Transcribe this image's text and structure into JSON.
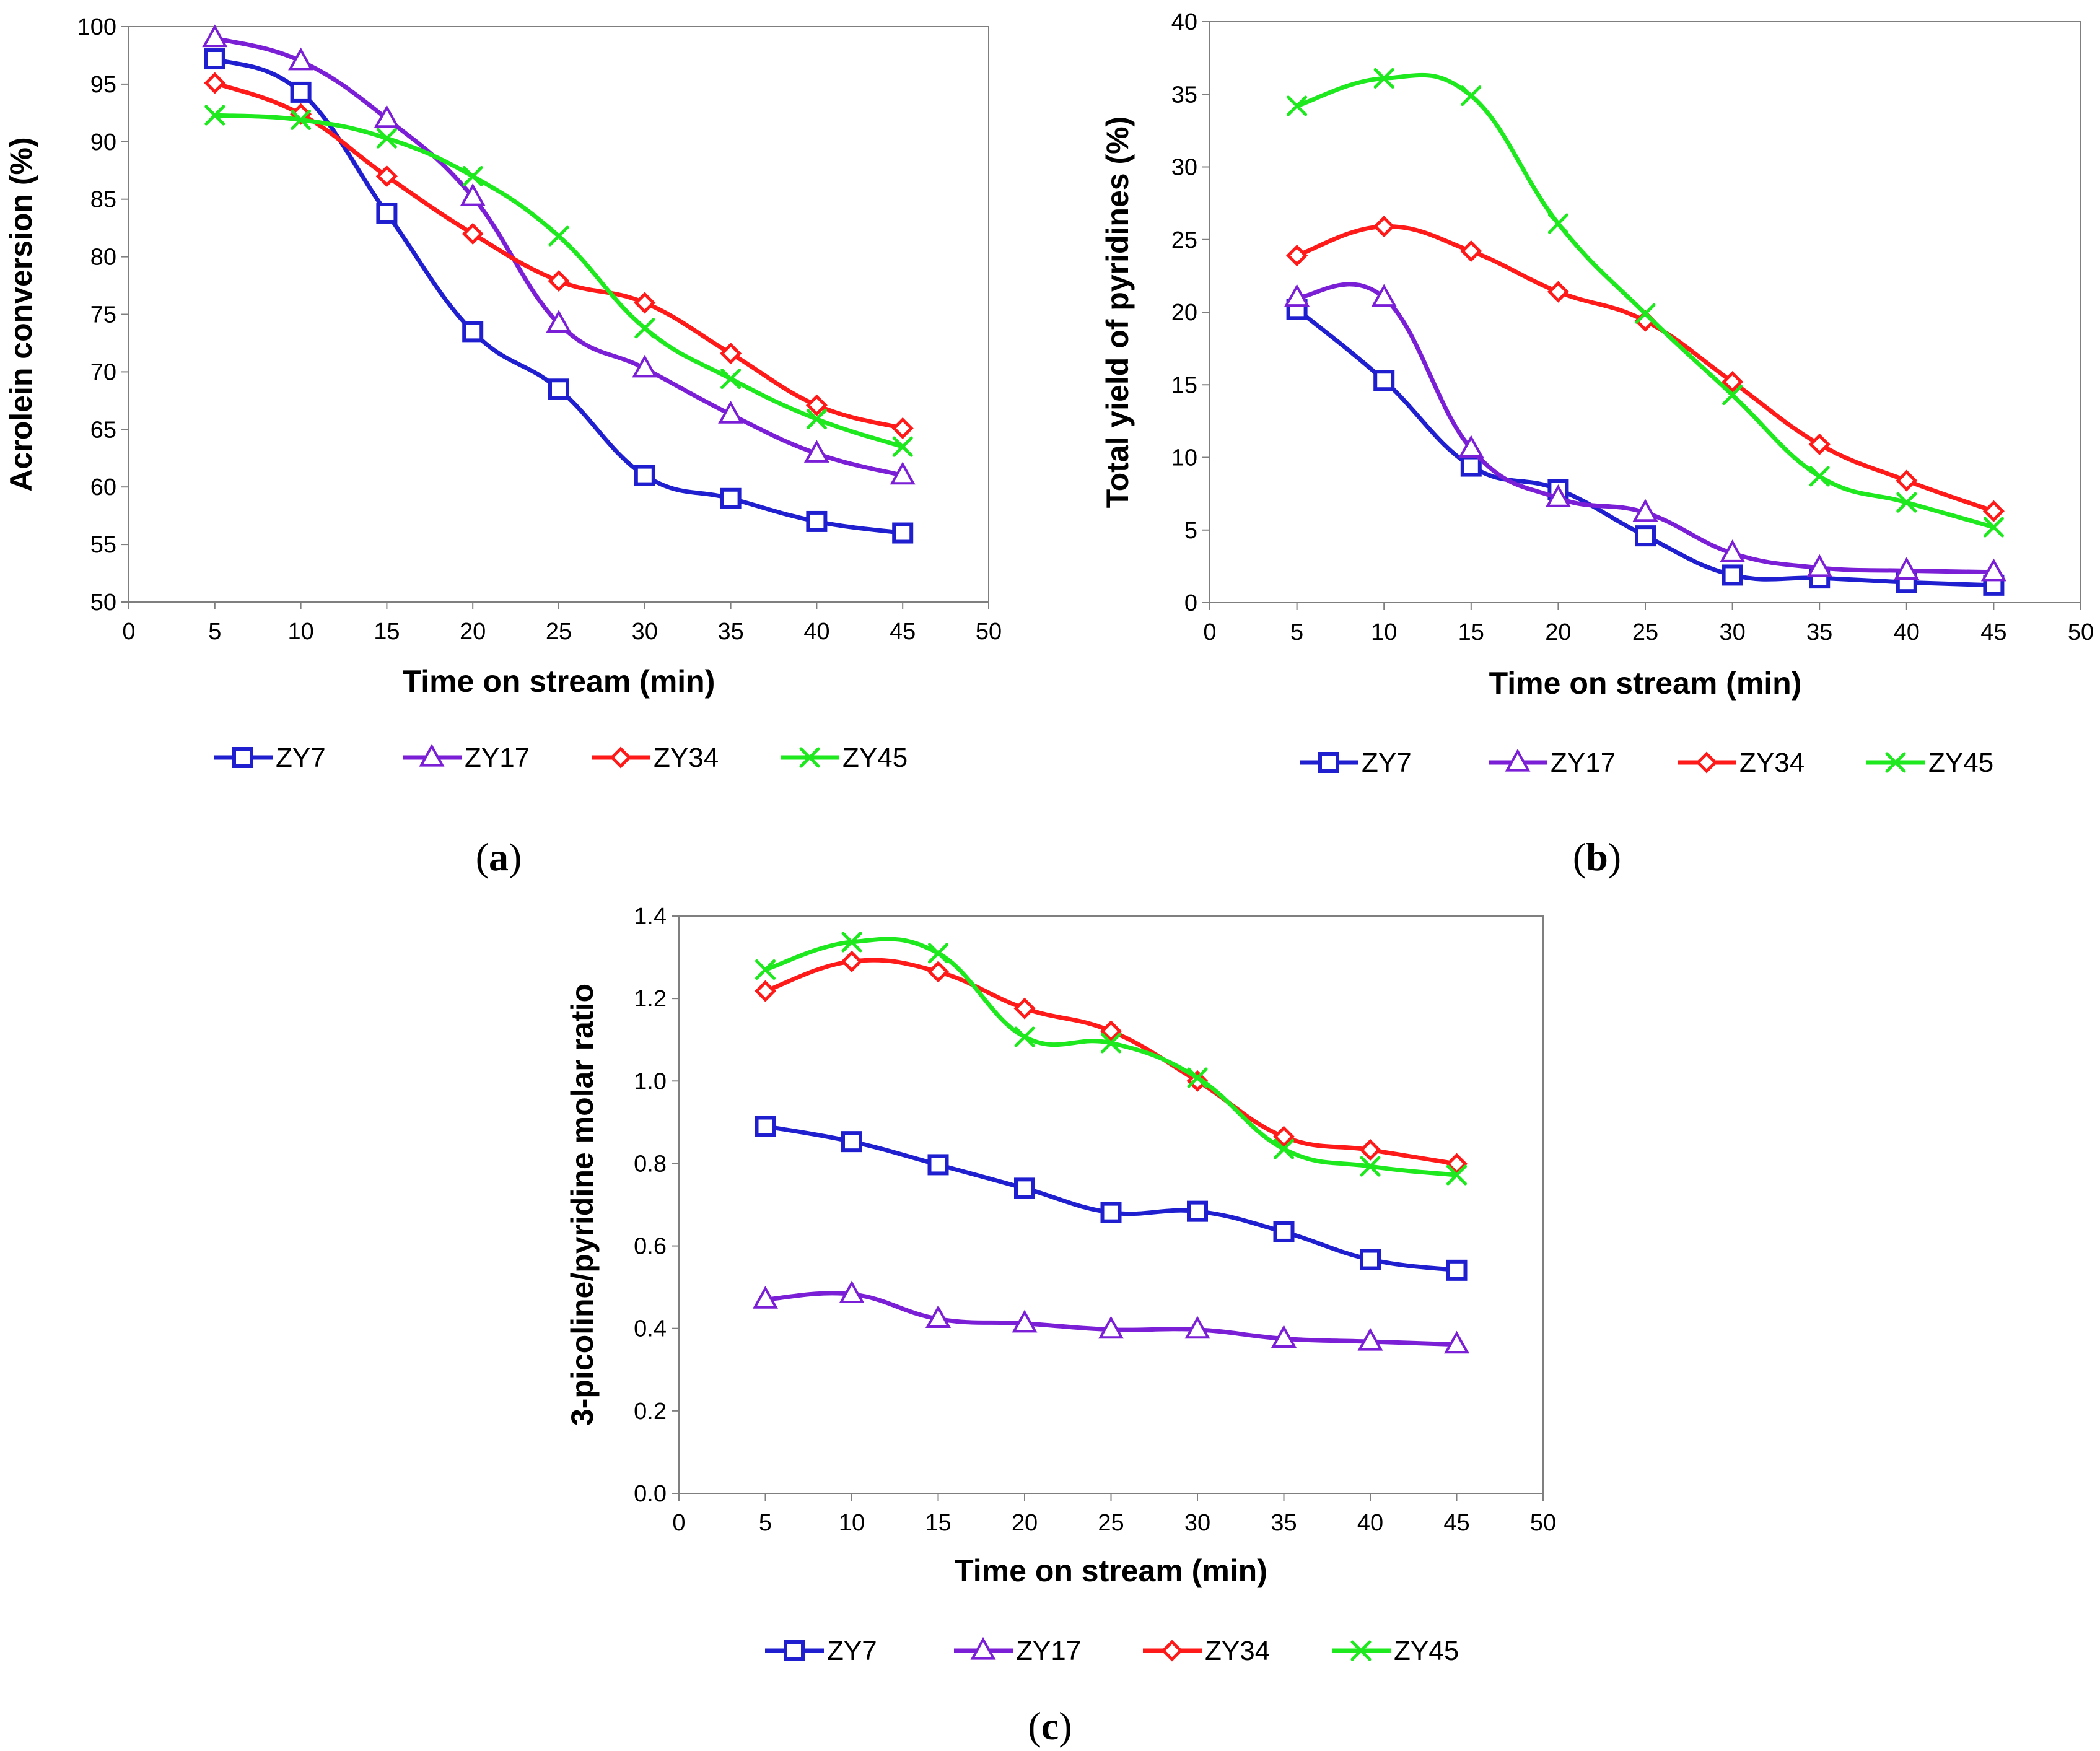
{
  "figure": {
    "panel_labels": [
      {
        "open": "(",
        "letter": "a",
        "close": ")"
      },
      {
        "open": "(",
        "letter": "b",
        "close": ")"
      },
      {
        "open": "(",
        "letter": "c",
        "close": ")"
      }
    ]
  },
  "colors": {
    "ZY7": "#1f1fd0",
    "ZY17": "#7b1fd6",
    "ZY34": "#ff1a1a",
    "ZY45": "#1ee81e"
  },
  "chart_data": [
    {
      "type": "line",
      "panel": "a",
      "title": "",
      "xlabel": "Time on stream (min)",
      "ylabel": "Acrolein conversion (%)",
      "xlim": [
        0,
        50
      ],
      "ylim": [
        50,
        100
      ],
      "xticks": [
        0,
        5,
        10,
        15,
        20,
        25,
        30,
        35,
        40,
        45,
        50
      ],
      "yticks": [
        50,
        55,
        60,
        65,
        70,
        75,
        80,
        85,
        90,
        95,
        100
      ],
      "ytick_decimals": 0,
      "legend": "bottom",
      "x": [
        5,
        10,
        15,
        20,
        25,
        30,
        35,
        40,
        45
      ],
      "series": [
        {
          "name": "ZY7",
          "marker": "square",
          "values": [
            97.2,
            94.3,
            83.8,
            73.5,
            68.5,
            61.0,
            59.0,
            57.0,
            56.0
          ]
        },
        {
          "name": "ZY17",
          "marker": "triangle",
          "values": [
            99.0,
            97.0,
            92.0,
            85.2,
            74.2,
            70.3,
            66.3,
            62.9,
            61.0
          ]
        },
        {
          "name": "ZY34",
          "marker": "diamond",
          "values": [
            95.1,
            92.4,
            87.0,
            82.0,
            77.9,
            76.0,
            71.6,
            67.1,
            65.1
          ]
        },
        {
          "name": "ZY45",
          "marker": "x",
          "values": [
            92.3,
            91.9,
            90.3,
            87.0,
            81.8,
            73.8,
            69.4,
            65.9,
            63.5
          ]
        }
      ]
    },
    {
      "type": "line",
      "panel": "b",
      "title": "",
      "xlabel": "Time on stream (min)",
      "ylabel": "Total yield of pyridines (%)",
      "xlim": [
        0,
        50
      ],
      "ylim": [
        0,
        40
      ],
      "xticks": [
        0,
        5,
        10,
        15,
        20,
        25,
        30,
        35,
        40,
        45,
        50
      ],
      "yticks": [
        0,
        5,
        10,
        15,
        20,
        25,
        30,
        35,
        40
      ],
      "ytick_decimals": 0,
      "legend": "bottom",
      "x": [
        5,
        10,
        15,
        20,
        25,
        30,
        35,
        40,
        45
      ],
      "series": [
        {
          "name": "ZY7",
          "marker": "square",
          "values": [
            20.2,
            15.3,
            9.4,
            7.8,
            4.6,
            1.9,
            1.7,
            1.4,
            1.2
          ]
        },
        {
          "name": "ZY17",
          "marker": "triangle",
          "values": [
            21.0,
            21.0,
            10.6,
            7.2,
            6.2,
            3.4,
            2.4,
            2.2,
            2.1
          ]
        },
        {
          "name": "ZY34",
          "marker": "diamond",
          "values": [
            23.9,
            25.9,
            24.2,
            21.4,
            19.4,
            15.2,
            10.9,
            8.4,
            6.3
          ]
        },
        {
          "name": "ZY45",
          "marker": "x",
          "values": [
            34.2,
            36.1,
            34.9,
            26.1,
            19.9,
            14.3,
            8.7,
            6.9,
            5.2
          ]
        }
      ]
    },
    {
      "type": "line",
      "panel": "c",
      "title": "",
      "xlabel": "Time on stream (min)",
      "ylabel": "3-picoline/pyridine molar ratio",
      "xlim": [
        0,
        50
      ],
      "ylim": [
        0,
        1.4
      ],
      "xticks": [
        0,
        5,
        10,
        15,
        20,
        25,
        30,
        35,
        40,
        45,
        50
      ],
      "yticks": [
        0.0,
        0.2,
        0.4,
        0.6,
        0.8,
        1.0,
        1.2,
        1.4
      ],
      "ytick_decimals": 1,
      "legend": "bottom",
      "x": [
        5,
        10,
        15,
        20,
        25,
        30,
        35,
        40,
        45
      ],
      "series": [
        {
          "name": "ZY7",
          "marker": "square",
          "values": [
            0.89,
            0.853,
            0.797,
            0.74,
            0.681,
            0.684,
            0.634,
            0.567,
            0.541
          ]
        },
        {
          "name": "ZY17",
          "marker": "triangle",
          "values": [
            0.47,
            0.483,
            0.423,
            0.412,
            0.397,
            0.397,
            0.375,
            0.368,
            0.361
          ]
        },
        {
          "name": "ZY34",
          "marker": "diamond",
          "values": [
            1.218,
            1.29,
            1.265,
            1.176,
            1.121,
            1.0,
            0.865,
            0.833,
            0.799
          ]
        },
        {
          "name": "ZY45",
          "marker": "x",
          "values": [
            1.27,
            1.337,
            1.31,
            1.107,
            1.092,
            1.008,
            0.835,
            0.793,
            0.772
          ]
        }
      ]
    }
  ]
}
